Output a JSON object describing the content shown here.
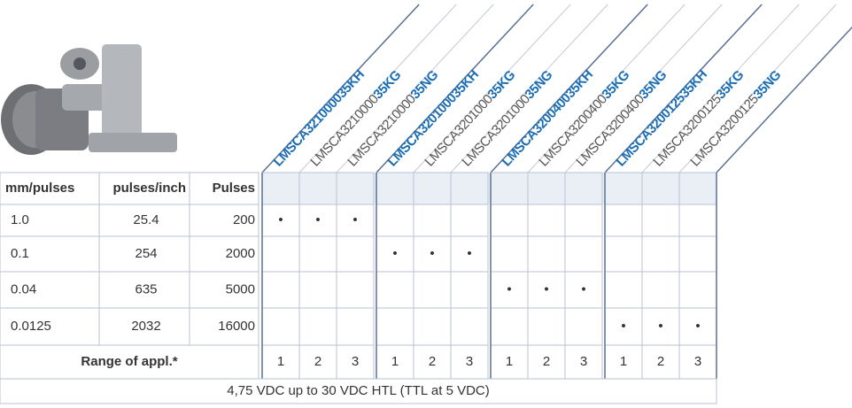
{
  "table": {
    "header": [
      "mm/pulses",
      "pulses/inch",
      "Pulses"
    ],
    "models": [
      {
        "base": "LMSCA3210000",
        "suffix": "35KH"
      },
      {
        "base": "LMSCA3210000",
        "suffix": "35KG"
      },
      {
        "base": "LMSCA3210000",
        "suffix": "35NG"
      },
      {
        "base": "LMSCA3201000",
        "suffix": "35KH"
      },
      {
        "base": "LMSCA3201000",
        "suffix": "35KG"
      },
      {
        "base": "LMSCA3201000",
        "suffix": "35NG"
      },
      {
        "base": "LMSCA3200400",
        "suffix": "35KH"
      },
      {
        "base": "LMSCA3200400",
        "suffix": "35KG"
      },
      {
        "base": "LMSCA3200400",
        "suffix": "35NG"
      },
      {
        "base": "LMSCA3200125",
        "suffix": "35KH"
      },
      {
        "base": "LMSCA3200125",
        "suffix": "35KG"
      },
      {
        "base": "LMSCA3200125",
        "suffix": "35NG"
      }
    ],
    "rows": [
      [
        "1.0",
        "25.4",
        "200"
      ],
      [
        "0.1",
        "254",
        "2000"
      ],
      [
        "0.04",
        "635",
        "5000"
      ],
      [
        "0.0125",
        "2032",
        "16000"
      ]
    ],
    "dots": [
      [
        "•",
        "•",
        "•"
      ],
      [
        "•",
        "•",
        "•"
      ],
      [
        "•",
        "•",
        "•"
      ],
      [
        "•",
        "•",
        "•"
      ]
    ],
    "range_label": "Range of appl.*",
    "range": [
      1,
      2,
      3,
      1,
      2,
      3,
      1,
      2,
      3,
      1,
      2,
      3
    ],
    "footer": "4,75 VDC up to 30 VDC HTL (TTL at 5 VDC)"
  }
}
